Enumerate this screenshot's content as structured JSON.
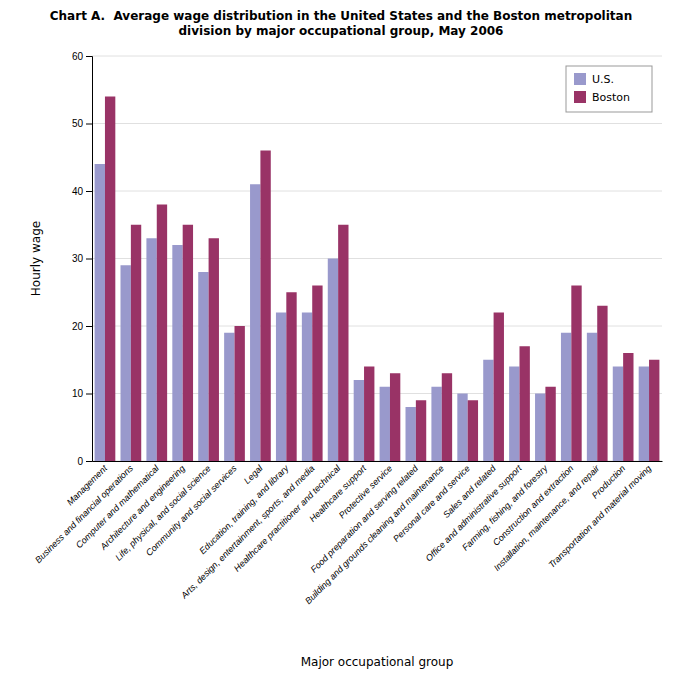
{
  "chart_data": {
    "type": "bar",
    "title": "Chart A.  Average wage distribution in the United States and the Boston metropolitan\ndivision by major occupational group, May 2006",
    "xlabel": "Major occupational group",
    "ylabel": "Hourly wage",
    "categories": [
      "Management",
      "Business and financial operations",
      "Computer and mathematical",
      "Architecture and engineering",
      "Life, physical, and social science",
      "Community and social services",
      "Legal",
      "Education, training, and library",
      "Arts, design, entertainment, sports, and media",
      "Healthcare practitioner and technical",
      "Healthcare support",
      "Protective service",
      "Food preparation and serving related",
      "Building and grounds cleaning and maintenance",
      "Personal care and service",
      "Sales and related",
      "Office and administrative support",
      "Farming, fishing, and forestry",
      "Construction and extraction",
      "Installation, maintenance, and repair",
      "Production",
      "Transportation and material moving"
    ],
    "series": [
      {
        "name": "U.S.",
        "color": "#9999CC",
        "values": [
          44,
          29,
          33,
          32,
          28,
          19,
          41,
          22,
          22,
          30,
          12,
          11,
          8,
          11,
          10,
          15,
          14,
          10,
          19,
          19,
          14,
          14
        ]
      },
      {
        "name": "Boston",
        "color": "#993366",
        "values": [
          54,
          35,
          38,
          35,
          33,
          20,
          46,
          25,
          26,
          35,
          14,
          13,
          9,
          13,
          9,
          22,
          17,
          11,
          26,
          23,
          16,
          15
        ]
      }
    ],
    "ylim": [
      0,
      60
    ],
    "yticks": [
      0,
      10,
      20,
      30,
      40,
      50,
      60
    ],
    "grid": true,
    "legend": "upper right"
  }
}
